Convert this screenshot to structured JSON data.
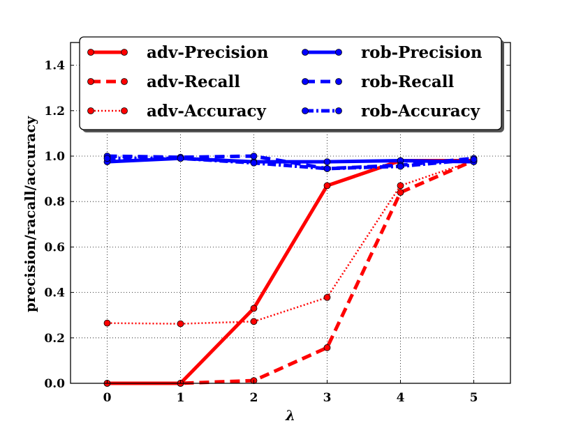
{
  "chart_data": {
    "type": "line",
    "xlabel": "λ",
    "ylabel": "precision/racall/accuracy",
    "xlim": [
      -0.5,
      5.5
    ],
    "ylim": [
      0.0,
      1.5
    ],
    "x_ticks": [
      "0",
      "1",
      "2",
      "3",
      "4",
      "5"
    ],
    "y_ticks": [
      "0.0",
      "0.2",
      "0.4",
      "0.6",
      "0.8",
      "1.0",
      "1.2",
      "1.4"
    ],
    "grid": true,
    "legend_position": "top",
    "x": [
      0,
      1,
      2,
      3,
      4,
      5
    ],
    "series": [
      {
        "name": "adv-Precision",
        "color": "#ff0000",
        "style": "solid",
        "values": [
          0.0,
          0.0,
          0.33,
          0.87,
          0.98,
          0.98
        ]
      },
      {
        "name": "adv-Recall",
        "color": "#ff0000",
        "style": "dashed",
        "values": [
          0.0,
          0.0,
          0.012,
          0.157,
          0.84,
          0.98
        ]
      },
      {
        "name": "adv-Accuracy",
        "color": "#ff0000",
        "style": "dotted",
        "values": [
          0.265,
          0.262,
          0.272,
          0.378,
          0.87,
          0.98
        ]
      },
      {
        "name": "rob-Precision",
        "color": "#0000ff",
        "style": "solid",
        "values": [
          0.975,
          0.99,
          0.975,
          0.975,
          0.98,
          0.975
        ]
      },
      {
        "name": "rob-Recall",
        "color": "#0000ff",
        "style": "dashed",
        "values": [
          1.0,
          0.995,
          1.0,
          0.945,
          0.96,
          0.99
        ]
      },
      {
        "name": "rob-Accuracy",
        "color": "#0000ff",
        "style": "dashdot",
        "values": [
          0.99,
          0.99,
          0.97,
          0.945,
          0.955,
          0.985
        ]
      }
    ]
  }
}
